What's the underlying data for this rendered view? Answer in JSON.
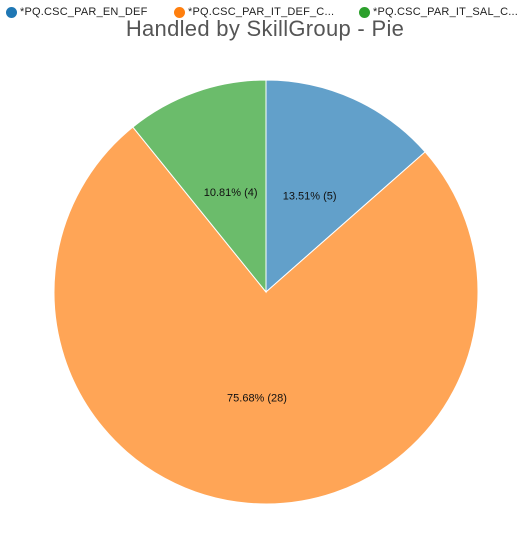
{
  "chart_data": {
    "type": "pie",
    "title": "Handled by SkillGroup - Pie",
    "legend_position": "top-left",
    "series": [
      {
        "name": "*PQ.CSC_PAR_EN_DEF",
        "legend_label": "*PQ.CSC_PAR_EN_DEF",
        "value": 5,
        "percent": 13.51,
        "label": "13.51% (5)",
        "color": "#62a0ca",
        "legend_color": "#1f77b4"
      },
      {
        "name": "*PQ.CSC_PAR_IT_DEF_C...",
        "legend_label": "*PQ.CSC_PAR_IT_DEF_C...",
        "value": 28,
        "percent": 75.68,
        "label": "75.68% (28)",
        "color": "#ffa556",
        "legend_color": "#ff7f0e"
      },
      {
        "name": "*PQ.CSC_PAR_IT_SAL_C...",
        "legend_label": "*PQ.CSC_PAR_IT_SAL_C...",
        "value": 4,
        "percent": 10.81,
        "label": "10.81% (4)",
        "color": "#6bbc6b",
        "legend_color": "#2ca02c"
      }
    ]
  }
}
